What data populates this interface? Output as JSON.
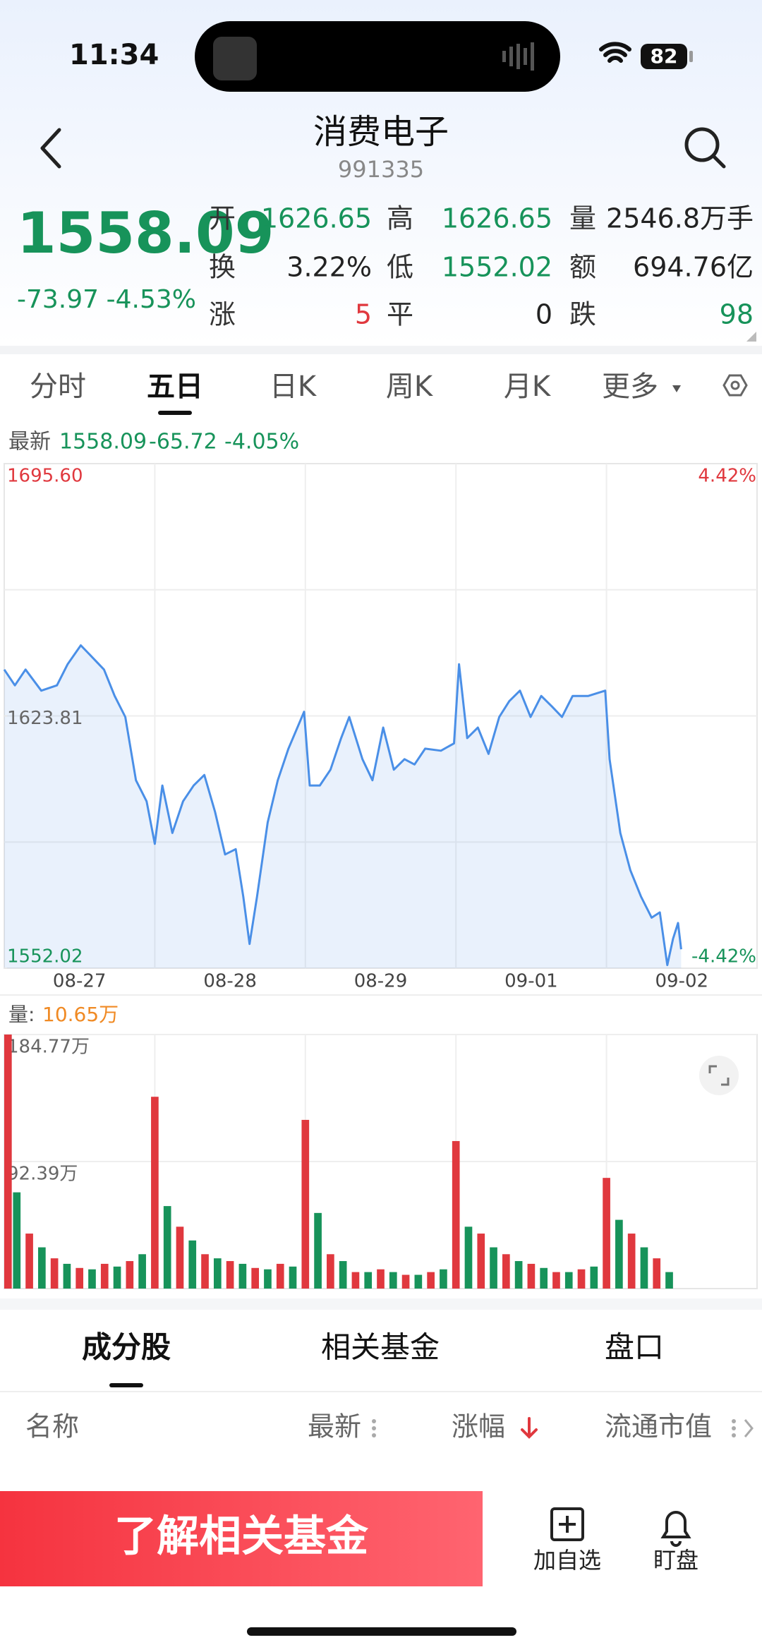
{
  "status_bar": {
    "time": "11:34",
    "battery": "82"
  },
  "header": {
    "title": "消费电子",
    "code": "991335"
  },
  "quote": {
    "price": "1558.09",
    "change": "-73.97",
    "change_pct": "-4.53%",
    "fields": [
      [
        {
          "label": "开",
          "value": "1626.65",
          "color": "#17935a"
        },
        {
          "label": "高",
          "value": "1626.65",
          "color": "#17935a"
        },
        {
          "label": "量",
          "value": "2546.8万手",
          "color": "#222222"
        }
      ],
      [
        {
          "label": "换",
          "value": "3.22%",
          "color": "#222222"
        },
        {
          "label": "低",
          "value": "1552.02",
          "color": "#17935a"
        },
        {
          "label": "额",
          "value": "694.76亿",
          "color": "#222222"
        }
      ],
      [
        {
          "label": "涨",
          "value": "5",
          "color": "#e0383e"
        },
        {
          "label": "平",
          "value": "0",
          "color": "#222222"
        },
        {
          "label": "跌",
          "value": "98",
          "color": "#17935a"
        }
      ]
    ]
  },
  "period_tabs": [
    "分时",
    "五日",
    "日K",
    "周K",
    "月K",
    "更多"
  ],
  "active_period": 1,
  "chart_data": [
    {
      "type": "line",
      "header": {
        "label": "最新",
        "price": "1558.09",
        "change": "-65.72",
        "change_pct": "-4.05%"
      },
      "x": [
        0,
        17,
        34,
        59,
        84,
        101,
        122,
        143,
        159,
        176,
        193,
        210,
        227,
        240,
        252,
        268,
        285,
        302,
        319,
        336,
        352,
        369,
        381,
        391,
        403,
        420,
        436,
        453,
        478,
        487,
        503,
        520,
        537,
        550,
        571,
        587,
        604,
        621,
        638,
        654,
        671,
        696,
        717,
        725,
        738,
        755,
        772,
        789,
        805,
        822,
        839,
        856,
        873,
        889,
        906,
        931,
        958,
        965,
        982,
        998,
        1015,
        1032,
        1045,
        1057,
        1066,
        1074,
        1079
      ],
      "series": [
        {
          "color": "#4a8fe7",
          "values": [
            1637.0,
            1632.5,
            1637.0,
            1631.0,
            1632.5,
            1638.5,
            1643.9,
            1640.0,
            1637.0,
            1629.5,
            1623.5,
            1605.5,
            1599.5,
            1587.4,
            1604.0,
            1590.5,
            1599.5,
            1604.0,
            1607.0,
            1596.5,
            1584.4,
            1585.9,
            1572.4,
            1558.9,
            1572.4,
            1593.5,
            1605.5,
            1614.5,
            1625.0,
            1604.0,
            1604.0,
            1608.5,
            1617.5,
            1623.5,
            1611.5,
            1605.5,
            1620.5,
            1608.5,
            1611.5,
            1610.0,
            1614.5,
            1613.9,
            1616.0,
            1638.5,
            1617.5,
            1620.5,
            1613.0,
            1623.5,
            1628.0,
            1631.0,
            1623.5,
            1629.5,
            1626.5,
            1623.5,
            1629.5,
            1629.5,
            1631.0,
            1611.5,
            1590.5,
            1579.9,
            1572.4,
            1566.4,
            1567.9,
            1552.9,
            1560.4,
            1564.9,
            1557.4
          ]
        }
      ],
      "xlim": [
        0,
        1200
      ],
      "xticks": [
        {
          "value": 120,
          "label": "08-27"
        },
        {
          "value": 360,
          "label": "08-28"
        },
        {
          "value": 600,
          "label": "08-29"
        },
        {
          "value": 840,
          "label": "09-01"
        },
        {
          "value": 1080,
          "label": "09-02"
        }
      ],
      "ylim": [
        1552.02,
        1695.6
      ],
      "yticks": [
        {
          "value": 1695.6,
          "label": "1695.60",
          "color": "#e0383e"
        },
        {
          "value": 1623.81,
          "label": "1623.81",
          "color": "#666666"
        },
        {
          "value": 1552.02,
          "label": "1552.02",
          "color": "#17935a"
        }
      ],
      "y2lim": [
        -4.42,
        4.42
      ],
      "y2ticks": [
        {
          "value": 4.42,
          "label": "4.42%",
          "color": "#e0383e"
        },
        {
          "value": -4.42,
          "label": "-4.42%",
          "color": "#17935a"
        }
      ],
      "grid": true
    },
    {
      "type": "bar",
      "label": "量:",
      "current": "10.65万",
      "series": [
        {
          "color": "#e0383e",
          "x": [
            0,
            40,
            80,
            120,
            160,
            200,
            240,
            280,
            320,
            360,
            400,
            440,
            480,
            520,
            560,
            600,
            640,
            680,
            720,
            760,
            800,
            840,
            880,
            920,
            960,
            1000,
            1040
          ],
          "values": [
            184.77,
            40,
            22,
            15,
            18,
            20,
            139.5,
            45,
            25,
            20,
            15,
            18,
            122.7,
            25,
            12,
            14,
            10,
            12,
            107.3,
            40,
            25,
            18,
            12,
            14,
            80.5,
            40,
            22
          ]
        },
        {
          "color": "#17935a",
          "x": [
            20,
            60,
            100,
            140,
            180,
            220,
            260,
            300,
            340,
            380,
            420,
            460,
            500,
            540,
            580,
            620,
            660,
            700,
            740,
            780,
            820,
            860,
            900,
            940,
            980,
            1020,
            1060
          ],
          "values": [
            70,
            30,
            18,
            14,
            16,
            25,
            60,
            35,
            22,
            18,
            14,
            16,
            55,
            20,
            12,
            12,
            10,
            14,
            45,
            30,
            20,
            15,
            12,
            16,
            50,
            30,
            12
          ]
        }
      ],
      "xlim": [
        0,
        1200
      ],
      "ylim": [
        0,
        184.77
      ],
      "yticks": [
        {
          "value": 184.77,
          "label": "184.77万"
        },
        {
          "value": 92.39,
          "label": "92.39万"
        }
      ]
    }
  ],
  "list_tabs": [
    "成分股",
    "相关基金",
    "盘口"
  ],
  "active_list_tab": 0,
  "columns": [
    "名称",
    "最新",
    "涨幅",
    "流通市值"
  ],
  "footer": {
    "button": "了解相关基金",
    "actions": [
      "加自选",
      "盯盘"
    ]
  }
}
